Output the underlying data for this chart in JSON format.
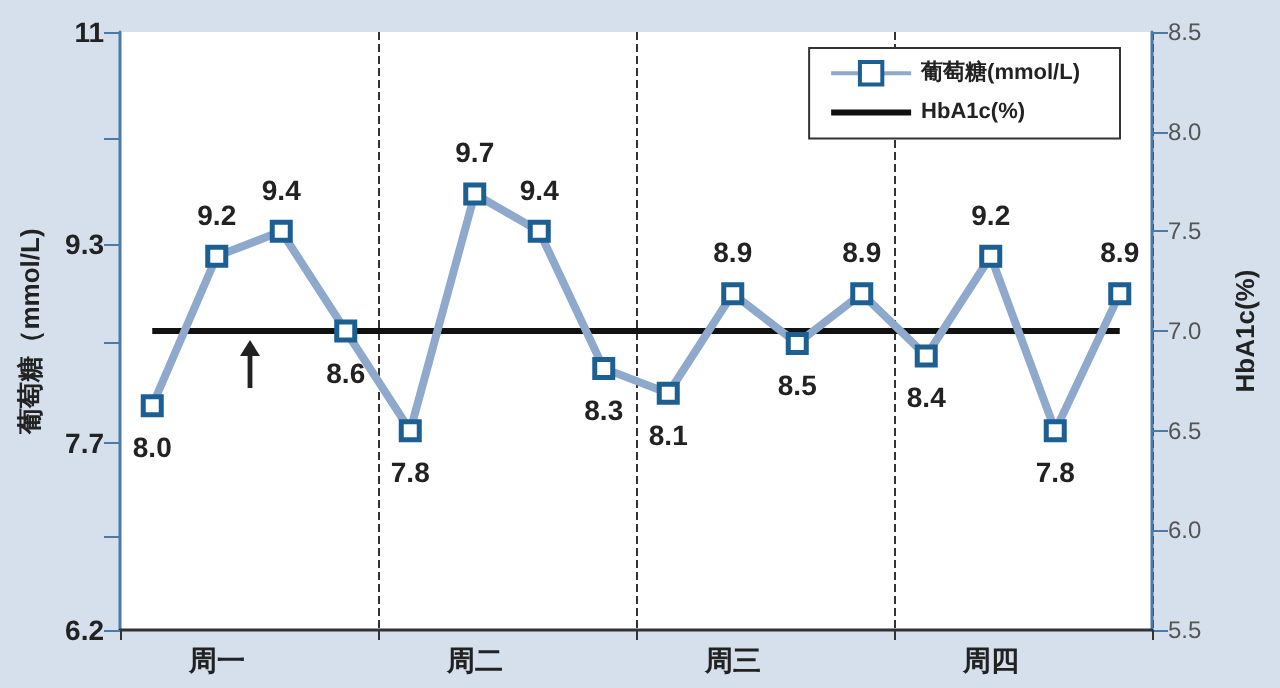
{
  "chart_data": {
    "type": "line",
    "ylabel": "葡萄糖（mmol/L)",
    "y2label": "HbA1c(%)",
    "categories": [
      null,
      "周一",
      null,
      null,
      null,
      "周二",
      null,
      null,
      null,
      "周三",
      null,
      null,
      null,
      "周四",
      null,
      null
    ],
    "series": [
      {
        "name": "葡萄糖(mmol/L)",
        "color": "#8fa9cc",
        "marker": "square",
        "values": [
          8.0,
          9.2,
          9.4,
          8.6,
          7.8,
          9.7,
          9.4,
          8.3,
          8.1,
          8.9,
          8.5,
          8.9,
          8.4,
          9.2,
          7.8,
          8.9
        ],
        "value_labels": [
          "8.0",
          "9.2",
          "9.4",
          "8.6",
          "7.8",
          "9.7",
          "9.4",
          "8.3",
          "8.1",
          "8.9",
          "8.5",
          "8.9",
          "8.4",
          "9.2",
          "7.8",
          "8.9"
        ]
      },
      {
        "name": "HbA1c(%)",
        "color": "#111111",
        "axis": "y2",
        "marker": "none",
        "values": [
          7.0,
          7.0,
          7.0,
          7.0,
          7.0,
          7.0,
          7.0,
          7.0,
          7.0,
          7.0,
          7.0,
          7.0,
          7.0,
          7.0,
          7.0,
          7.0
        ]
      }
    ],
    "ylim": [
      6.2,
      11
    ],
    "yticks": [
      6.2,
      {
        "value": 6.95,
        "label": null
      },
      7.7,
      {
        "value": 8.5,
        "label": null
      },
      9.3,
      {
        "value": 10.15,
        "label": null
      },
      11
    ],
    "y2lim": [
      5.5,
      8.5
    ],
    "y2ticks": [
      {
        "value": 5.5,
        "label": "5.5"
      },
      {
        "value": 6,
        "label": "6.0"
      },
      {
        "value": 6.5,
        "label": "6.5"
      },
      {
        "value": 7,
        "label": "7.0"
      },
      {
        "value": 7.5,
        "label": "7.5"
      },
      {
        "value": 8,
        "label": "8.0"
      },
      {
        "value": 8.5,
        "label": "8.5"
      }
    ],
    "grid": "x",
    "legend": "top right"
  }
}
